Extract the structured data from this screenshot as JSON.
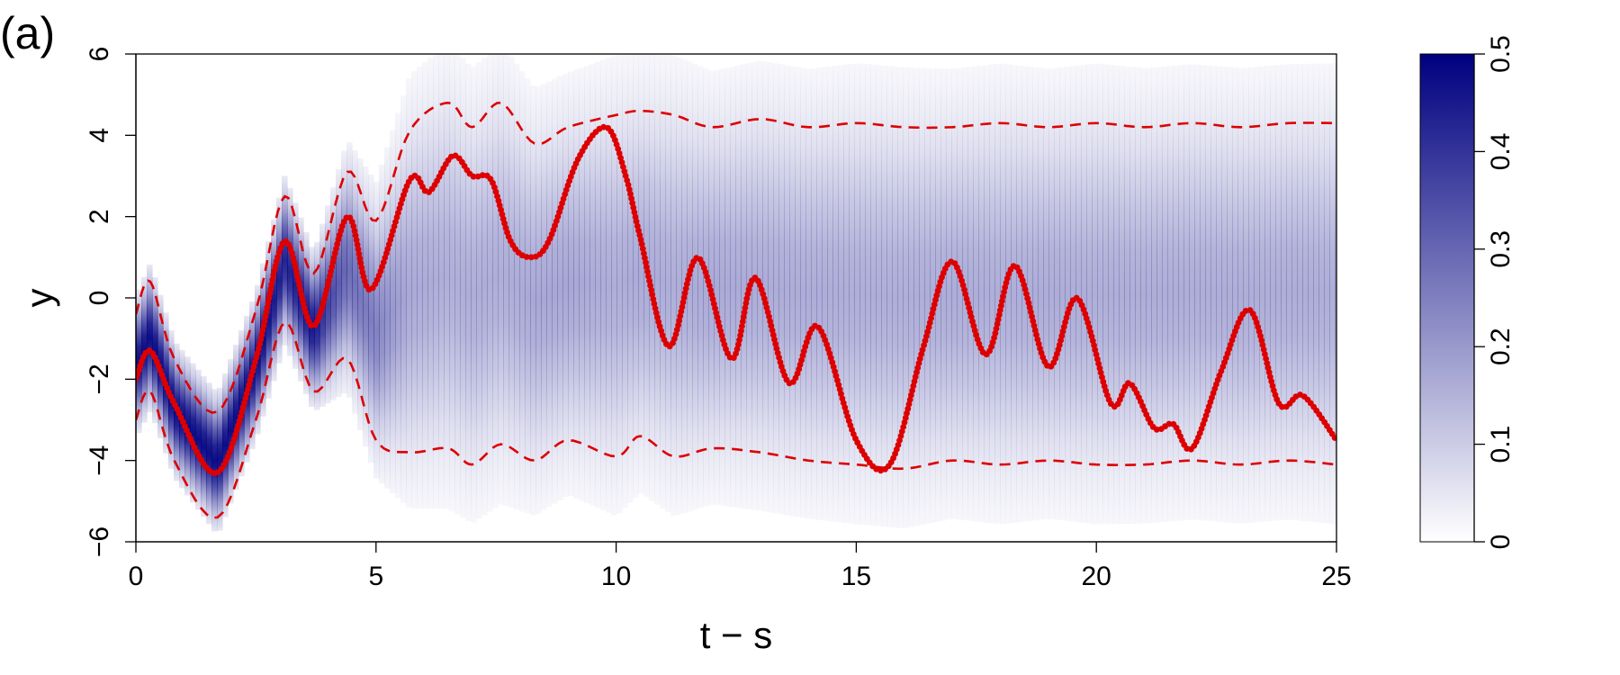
{
  "panel_label": "(a)",
  "chart_data": {
    "type": "heatmap",
    "title": "",
    "xlabel": "t − s",
    "ylabel": "y",
    "xlim": [
      0,
      25
    ],
    "ylim": [
      -6,
      6
    ],
    "x_ticks": [
      0,
      5,
      10,
      15,
      20,
      25
    ],
    "x_tick_labels": [
      "0",
      "5",
      "10",
      "15",
      "20",
      "25"
    ],
    "y_ticks": [
      -6,
      -4,
      -2,
      0,
      2,
      4,
      6
    ],
    "y_tick_labels": [
      "−6",
      "−4",
      "−2",
      "0",
      "2",
      "4",
      "6"
    ],
    "grid": false,
    "colorbar": {
      "range": [
        0,
        0.5
      ],
      "ticks": [
        0,
        0.1,
        0.2,
        0.3,
        0.4,
        0.5
      ],
      "tick_labels": [
        "0",
        "0.1",
        "0.2",
        "0.3",
        "0.4",
        "0.5"
      ],
      "color_low": "#ffffff",
      "color_high": "#000080",
      "placement": "right"
    },
    "density_description": "predictive density of y over time lag; concentrated early, spreading to a wide band after t-s around 10",
    "colors": {
      "density": "#000080",
      "path": "#dd0000",
      "band": "#dd0000"
    },
    "series": [
      {
        "style": "dotted-thick",
        "x": [
          0,
          0.3,
          0.8,
          1.7,
          2.5,
          3.1,
          3.7,
          4.4,
          4.9,
          5.7,
          6.1,
          6.6,
          7.0,
          7.4,
          7.8,
          8.2,
          8.6,
          9.2,
          9.8,
          10.2,
          10.5,
          11.1,
          11.7,
          12.4,
          12.9,
          13.6,
          14.2,
          15.0,
          15.7,
          16.4,
          17.0,
          17.7,
          18.3,
          19.0,
          19.6,
          20.3,
          20.7,
          21.2,
          21.6,
          22.0,
          22.6,
          23.2,
          23.8,
          24.3,
          25.0
        ],
        "y": [
          -2.0,
          -1.3,
          -2.6,
          -4.3,
          -1.5,
          1.4,
          -0.7,
          2.0,
          0.2,
          2.9,
          2.6,
          3.5,
          3.0,
          2.9,
          1.4,
          1.0,
          1.4,
          3.4,
          4.2,
          3.0,
          1.5,
          -1.2,
          1.0,
          -1.5,
          0.5,
          -2.1,
          -0.7,
          -3.5,
          -4.1,
          -1.2,
          0.9,
          -1.4,
          0.8,
          -1.7,
          0.0,
          -2.6,
          -2.1,
          -3.2,
          -3.1,
          -3.7,
          -1.8,
          -0.3,
          -2.6,
          -2.4,
          -3.5
        ]
      },
      {
        "style": "dashed",
        "x": [
          0,
          0.3,
          0.8,
          1.7,
          2.5,
          3.1,
          3.7,
          4.4,
          5.0,
          5.7,
          6.5,
          7.0,
          7.6,
          8.3,
          9.0,
          10.0,
          10.5,
          11.2,
          12.0,
          13.0,
          14.0,
          15.0,
          16.0,
          17.0,
          18.0,
          19.0,
          20.0,
          21.0,
          22.0,
          23.0,
          24.0,
          25.0
        ],
        "y": [
          -0.4,
          0.4,
          -1.5,
          -2.8,
          -0.3,
          2.5,
          0.6,
          3.1,
          1.9,
          4.1,
          4.8,
          4.2,
          4.8,
          3.8,
          4.2,
          4.5,
          4.6,
          4.5,
          4.2,
          4.4,
          4.2,
          4.3,
          4.2,
          4.2,
          4.3,
          4.2,
          4.3,
          4.2,
          4.3,
          4.2,
          4.3,
          4.3
        ]
      },
      {
        "style": "dashed",
        "x": [
          0,
          0.3,
          0.8,
          1.7,
          2.5,
          3.1,
          3.7,
          4.4,
          5.0,
          5.7,
          6.5,
          7.0,
          7.6,
          8.3,
          9.0,
          10.0,
          10.5,
          11.2,
          12.0,
          13.0,
          14.0,
          15.0,
          16.0,
          17.0,
          18.0,
          19.0,
          20.0,
          21.0,
          22.0,
          23.0,
          24.0,
          25.0
        ],
        "y": [
          -3.0,
          -2.3,
          -4.0,
          -5.4,
          -3.0,
          -0.6,
          -2.3,
          -1.5,
          -3.5,
          -3.8,
          -3.7,
          -4.1,
          -3.6,
          -4.0,
          -3.5,
          -3.9,
          -3.4,
          -3.9,
          -3.7,
          -3.8,
          -4.0,
          -4.1,
          -4.2,
          -4.0,
          -4.1,
          -4.0,
          -4.1,
          -4.1,
          -4.0,
          -4.1,
          -4.0,
          -4.1
        ]
      }
    ]
  }
}
